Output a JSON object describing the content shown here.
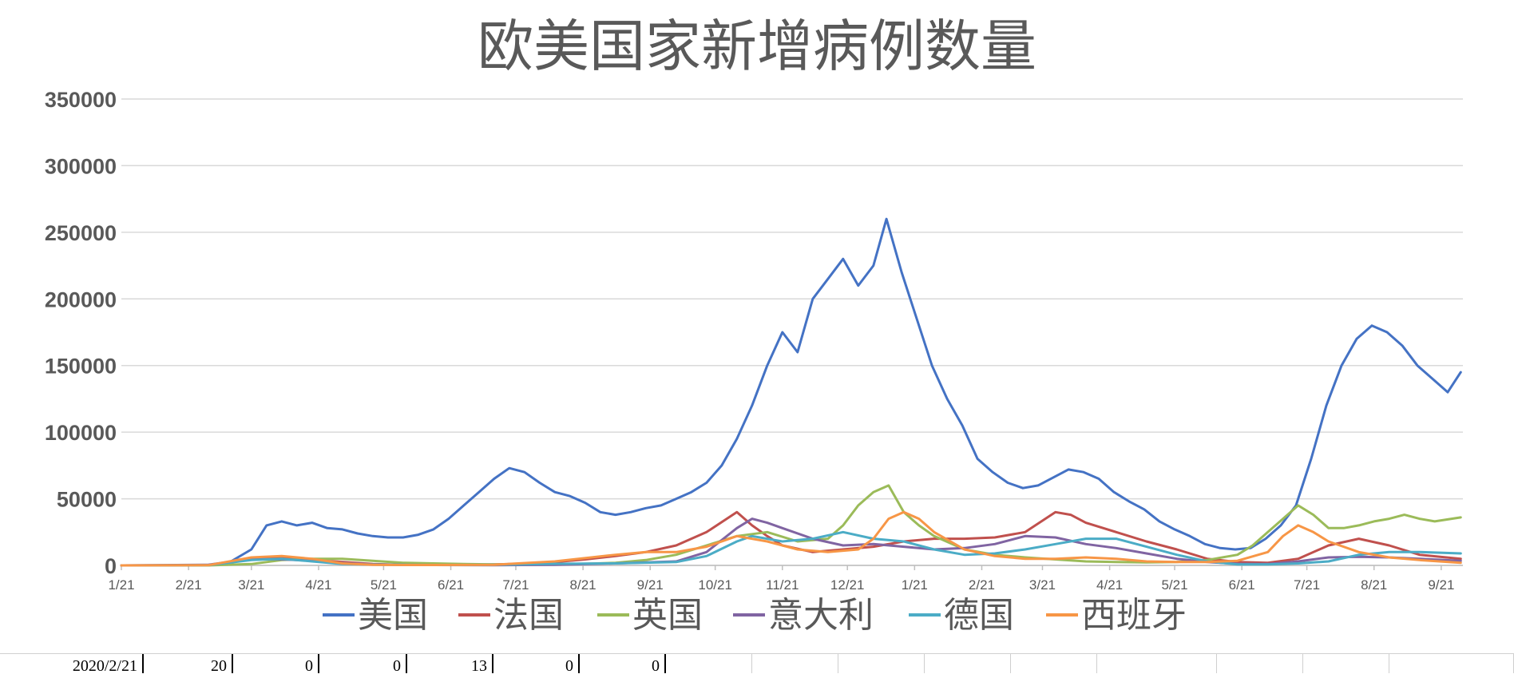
{
  "chart_data": {
    "type": "line",
    "title": "欧美国家新增病例数量",
    "xlabel": "",
    "ylabel": "",
    "ylim": [
      0,
      350000
    ],
    "y_ticks": [
      0,
      50000,
      100000,
      150000,
      200000,
      250000,
      300000,
      350000
    ],
    "y_tick_labels": [
      "0",
      "50000",
      "100000",
      "150000",
      "200000",
      "250000",
      "300000",
      "350000"
    ],
    "x_start": "2020-01-21",
    "x_end": "2021-10-01",
    "x_ticks": [
      "2020-01-21",
      "2020-02-21",
      "2020-03-21",
      "2020-04-21",
      "2020-05-21",
      "2020-06-21",
      "2020-07-21",
      "2020-08-21",
      "2020-09-21",
      "2020-10-21",
      "2020-11-21",
      "2020-12-21",
      "2021-01-21",
      "2021-02-21",
      "2021-03-21",
      "2021-04-21",
      "2021-05-21",
      "2021-06-21",
      "2021-07-21",
      "2021-08-21",
      "2021-09-21"
    ],
    "x_tick_labels": [
      "1/21",
      "2/21",
      "3/21",
      "4/21",
      "5/21",
      "6/21",
      "7/21",
      "8/21",
      "9/21",
      "10/21",
      "11/21",
      "12/21",
      "1/21",
      "2/21",
      "3/21",
      "4/21",
      "5/21",
      "6/21",
      "7/21",
      "8/21",
      "9/21"
    ],
    "grid": true,
    "legend_position": "bottom",
    "series": [
      {
        "name": "美国",
        "color": "#4472C4",
        "x": [
          "2020-01-21",
          "2020-02-21",
          "2020-03-01",
          "2020-03-10",
          "2020-03-21",
          "2020-03-28",
          "2020-04-04",
          "2020-04-11",
          "2020-04-18",
          "2020-04-25",
          "2020-05-02",
          "2020-05-09",
          "2020-05-16",
          "2020-05-23",
          "2020-05-30",
          "2020-06-06",
          "2020-06-13",
          "2020-06-20",
          "2020-06-27",
          "2020-07-04",
          "2020-07-11",
          "2020-07-18",
          "2020-07-25",
          "2020-08-01",
          "2020-08-08",
          "2020-08-15",
          "2020-08-22",
          "2020-08-29",
          "2020-09-05",
          "2020-09-12",
          "2020-09-19",
          "2020-09-26",
          "2020-10-03",
          "2020-10-10",
          "2020-10-17",
          "2020-10-24",
          "2020-10-31",
          "2020-11-07",
          "2020-11-14",
          "2020-11-21",
          "2020-11-28",
          "2020-12-05",
          "2020-12-12",
          "2020-12-19",
          "2020-12-26",
          "2021-01-02",
          "2021-01-08",
          "2021-01-15",
          "2021-01-22",
          "2021-01-29",
          "2021-02-05",
          "2021-02-12",
          "2021-02-19",
          "2021-02-26",
          "2021-03-05",
          "2021-03-12",
          "2021-03-19",
          "2021-03-26",
          "2021-04-02",
          "2021-04-09",
          "2021-04-16",
          "2021-04-23",
          "2021-04-30",
          "2021-05-07",
          "2021-05-14",
          "2021-05-21",
          "2021-05-28",
          "2021-06-04",
          "2021-06-11",
          "2021-06-18",
          "2021-06-25",
          "2021-07-02",
          "2021-07-09",
          "2021-07-16",
          "2021-07-23",
          "2021-07-30",
          "2021-08-06",
          "2021-08-13",
          "2021-08-20",
          "2021-08-27",
          "2021-09-03",
          "2021-09-10",
          "2021-09-17",
          "2021-09-24",
          "2021-09-30"
        ],
        "values": [
          0,
          0,
          100,
          1500,
          12000,
          30000,
          33000,
          30000,
          32000,
          28000,
          27000,
          24000,
          22000,
          21000,
          21000,
          23000,
          27000,
          35000,
          45000,
          55000,
          65000,
          73000,
          70000,
          62000,
          55000,
          52000,
          47000,
          40000,
          38000,
          40000,
          43000,
          45000,
          50000,
          55000,
          62000,
          75000,
          95000,
          120000,
          150000,
          175000,
          160000,
          200000,
          215000,
          230000,
          210000,
          225000,
          260000,
          220000,
          185000,
          150000,
          125000,
          105000,
          80000,
          70000,
          62000,
          58000,
          60000,
          66000,
          72000,
          70000,
          65000,
          55000,
          48000,
          42000,
          33000,
          27000,
          22000,
          16000,
          13000,
          12000,
          13000,
          20000,
          30000,
          45000,
          80000,
          120000,
          150000,
          170000,
          180000,
          175000,
          165000,
          150000,
          140000,
          130000,
          145000
        ]
      },
      {
        "name": "法国",
        "color": "#C0504D",
        "x": [
          "2020-01-21",
          "2020-03-01",
          "2020-03-21",
          "2020-04-04",
          "2020-04-18",
          "2020-05-02",
          "2020-05-16",
          "2020-05-30",
          "2020-06-13",
          "2020-06-27",
          "2020-07-11",
          "2020-07-25",
          "2020-08-08",
          "2020-08-22",
          "2020-09-05",
          "2020-09-19",
          "2020-10-03",
          "2020-10-17",
          "2020-10-31",
          "2020-11-07",
          "2020-11-14",
          "2020-11-21",
          "2020-12-05",
          "2020-12-19",
          "2021-01-02",
          "2021-01-16",
          "2021-01-30",
          "2021-02-13",
          "2021-02-27",
          "2021-03-13",
          "2021-03-27",
          "2021-04-03",
          "2021-04-10",
          "2021-04-24",
          "2021-05-08",
          "2021-05-22",
          "2021-06-05",
          "2021-06-19",
          "2021-07-03",
          "2021-07-17",
          "2021-07-31",
          "2021-08-14",
          "2021-08-28",
          "2021-09-11",
          "2021-09-30"
        ],
        "values": [
          0,
          0,
          5000,
          6000,
          4000,
          2500,
          1000,
          500,
          400,
          500,
          800,
          1200,
          2500,
          4500,
          7000,
          10000,
          15000,
          25000,
          40000,
          30000,
          22000,
          15000,
          10000,
          12000,
          14000,
          18000,
          20000,
          20000,
          21000,
          25000,
          40000,
          38000,
          32000,
          25000,
          18000,
          12000,
          5000,
          2500,
          2000,
          5000,
          15000,
          20000,
          15000,
          8000,
          5000
        ]
      },
      {
        "name": "英国",
        "color": "#9BBB59",
        "x": [
          "2020-01-21",
          "2020-03-01",
          "2020-03-21",
          "2020-04-04",
          "2020-04-18",
          "2020-05-02",
          "2020-05-16",
          "2020-05-30",
          "2020-06-13",
          "2020-06-27",
          "2020-07-11",
          "2020-07-25",
          "2020-08-08",
          "2020-08-22",
          "2020-09-05",
          "2020-09-19",
          "2020-10-03",
          "2020-10-17",
          "2020-10-31",
          "2020-11-14",
          "2020-11-28",
          "2020-12-12",
          "2020-12-19",
          "2020-12-26",
          "2021-01-02",
          "2021-01-09",
          "2021-01-16",
          "2021-01-23",
          "2021-01-30",
          "2021-02-13",
          "2021-02-27",
          "2021-03-13",
          "2021-03-27",
          "2021-04-10",
          "2021-04-24",
          "2021-05-08",
          "2021-05-22",
          "2021-06-05",
          "2021-06-19",
          "2021-06-26",
          "2021-07-03",
          "2021-07-10",
          "2021-07-17",
          "2021-07-24",
          "2021-07-31",
          "2021-08-07",
          "2021-08-14",
          "2021-08-21",
          "2021-08-28",
          "2021-09-04",
          "2021-09-11",
          "2021-09-18",
          "2021-09-30"
        ],
        "values": [
          0,
          0,
          1000,
          4000,
          5000,
          5000,
          3500,
          2000,
          1500,
          1000,
          700,
          700,
          1000,
          1200,
          2000,
          4000,
          8000,
          15000,
          22000,
          25000,
          18000,
          20000,
          30000,
          45000,
          55000,
          60000,
          40000,
          30000,
          22000,
          12000,
          8000,
          6000,
          4500,
          3000,
          2500,
          2200,
          2500,
          4000,
          8000,
          15000,
          25000,
          35000,
          45000,
          38000,
          28000,
          28000,
          30000,
          33000,
          35000,
          38000,
          35000,
          33000,
          36000
        ]
      },
      {
        "name": "意大利",
        "color": "#8064A2",
        "x": [
          "2020-01-21",
          "2020-03-01",
          "2020-03-21",
          "2020-04-04",
          "2020-04-18",
          "2020-05-02",
          "2020-05-16",
          "2020-05-30",
          "2020-06-13",
          "2020-07-11",
          "2020-08-08",
          "2020-09-05",
          "2020-10-03",
          "2020-10-17",
          "2020-10-31",
          "2020-11-07",
          "2020-11-14",
          "2020-11-21",
          "2020-12-05",
          "2020-12-19",
          "2021-01-02",
          "2021-01-16",
          "2021-01-30",
          "2021-02-13",
          "2021-02-27",
          "2021-03-13",
          "2021-03-27",
          "2021-04-10",
          "2021-04-24",
          "2021-05-08",
          "2021-05-22",
          "2021-06-05",
          "2021-06-19",
          "2021-07-03",
          "2021-07-17",
          "2021-07-31",
          "2021-08-14",
          "2021-08-28",
          "2021-09-11",
          "2021-09-30"
        ],
        "values": [
          0,
          500,
          5000,
          4500,
          3500,
          1800,
          800,
          400,
          300,
          200,
          400,
          1500,
          3000,
          10000,
          28000,
          35000,
          32000,
          28000,
          20000,
          15000,
          16000,
          14000,
          12000,
          13000,
          16000,
          22000,
          21000,
          16000,
          13000,
          9000,
          5000,
          2500,
          1200,
          1000,
          3000,
          6000,
          6500,
          6000,
          5000,
          3500
        ]
      },
      {
        "name": "德国",
        "color": "#4BACC6",
        "x": [
          "2020-01-21",
          "2020-03-01",
          "2020-03-21",
          "2020-04-04",
          "2020-04-18",
          "2020-05-02",
          "2020-05-16",
          "2020-05-30",
          "2020-06-13",
          "2020-07-11",
          "2020-08-08",
          "2020-09-05",
          "2020-10-03",
          "2020-10-17",
          "2020-10-31",
          "2020-11-07",
          "2020-11-14",
          "2020-11-21",
          "2020-12-05",
          "2020-12-19",
          "2021-01-02",
          "2021-01-16",
          "2021-01-30",
          "2021-02-13",
          "2021-02-27",
          "2021-03-13",
          "2021-03-27",
          "2021-04-10",
          "2021-04-24",
          "2021-05-08",
          "2021-05-22",
          "2021-06-05",
          "2021-06-19",
          "2021-07-03",
          "2021-07-17",
          "2021-07-31",
          "2021-08-14",
          "2021-08-28",
          "2021-09-11",
          "2021-09-30"
        ],
        "values": [
          0,
          100,
          4000,
          5000,
          3000,
          1000,
          600,
          400,
          300,
          400,
          1200,
          1500,
          2500,
          7000,
          18000,
          22000,
          20000,
          18000,
          20000,
          25000,
          20000,
          18000,
          12000,
          8000,
          9000,
          12000,
          16000,
          20000,
          20000,
          14000,
          8000,
          3000,
          800,
          700,
          1500,
          3000,
          8000,
          10000,
          10000,
          9000
        ]
      },
      {
        "name": "西班牙",
        "color": "#F79646",
        "x": [
          "2020-01-21",
          "2020-03-01",
          "2020-03-21",
          "2020-04-04",
          "2020-04-18",
          "2020-05-02",
          "2020-05-16",
          "2020-05-30",
          "2020-06-13",
          "2020-07-11",
          "2020-08-08",
          "2020-09-05",
          "2020-09-19",
          "2020-10-03",
          "2020-10-17",
          "2020-10-31",
          "2020-11-14",
          "2020-11-28",
          "2020-12-12",
          "2020-12-26",
          "2021-01-02",
          "2021-01-09",
          "2021-01-16",
          "2021-01-23",
          "2021-01-30",
          "2021-02-13",
          "2021-02-27",
          "2021-03-13",
          "2021-03-27",
          "2021-04-10",
          "2021-04-24",
          "2021-05-08",
          "2021-05-22",
          "2021-06-05",
          "2021-06-19",
          "2021-07-03",
          "2021-07-10",
          "2021-07-17",
          "2021-07-24",
          "2021-07-31",
          "2021-08-14",
          "2021-08-28",
          "2021-09-11",
          "2021-09-30"
        ],
        "values": [
          0,
          100,
          6000,
          7000,
          5000,
          1500,
          500,
          300,
          300,
          500,
          3000,
          8000,
          10000,
          10000,
          14000,
          22000,
          18000,
          12000,
          10000,
          12000,
          20000,
          35000,
          40000,
          35000,
          25000,
          12000,
          7000,
          5000,
          5000,
          6000,
          5000,
          3000,
          2500,
          2500,
          3500,
          10000,
          22000,
          30000,
          25000,
          18000,
          10000,
          6000,
          4000,
          2000
        ]
      }
    ]
  },
  "sheet_row": {
    "cells": [
      "2020/2/21",
      "20",
      "0",
      "0",
      "13",
      "0",
      "0"
    ]
  }
}
